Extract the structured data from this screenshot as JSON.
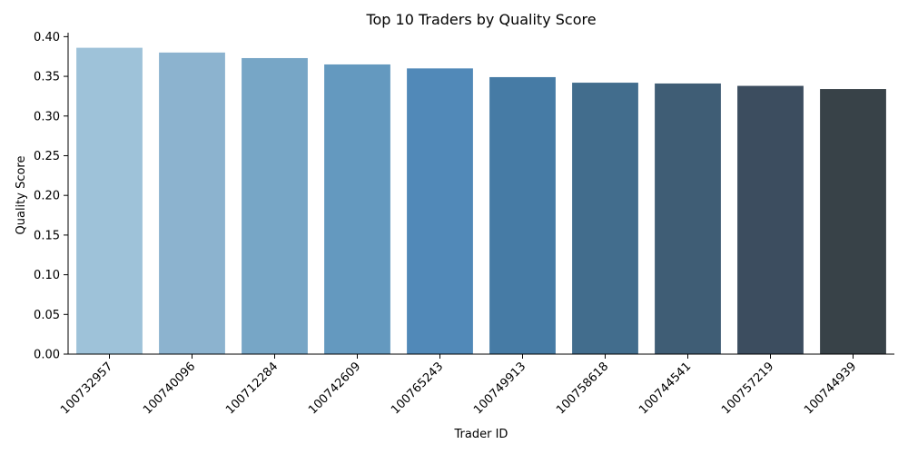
{
  "chart_data": {
    "type": "bar",
    "title": "Top 10 Traders by Quality Score",
    "xlabel": "Trader ID",
    "ylabel": "Quality Score",
    "categories": [
      "100732957",
      "100740096",
      "100712284",
      "100742609",
      "100765243",
      "100749913",
      "100758618",
      "100744541",
      "100757219",
      "100744939"
    ],
    "values": [
      0.386,
      0.38,
      0.373,
      0.365,
      0.36,
      0.349,
      0.342,
      0.341,
      0.338,
      0.334
    ],
    "ylim": [
      0,
      0.405
    ],
    "yticks": [
      "0.00",
      "0.05",
      "0.10",
      "0.15",
      "0.20",
      "0.25",
      "0.30",
      "0.35",
      "0.40"
    ],
    "grid": false,
    "colors": [
      "#9ec2d9",
      "#8cb3cf",
      "#77a6c6",
      "#6499bf",
      "#5189b8",
      "#467ba5",
      "#426d8d",
      "#3f5d75",
      "#3c4d5f",
      "#384248"
    ]
  }
}
